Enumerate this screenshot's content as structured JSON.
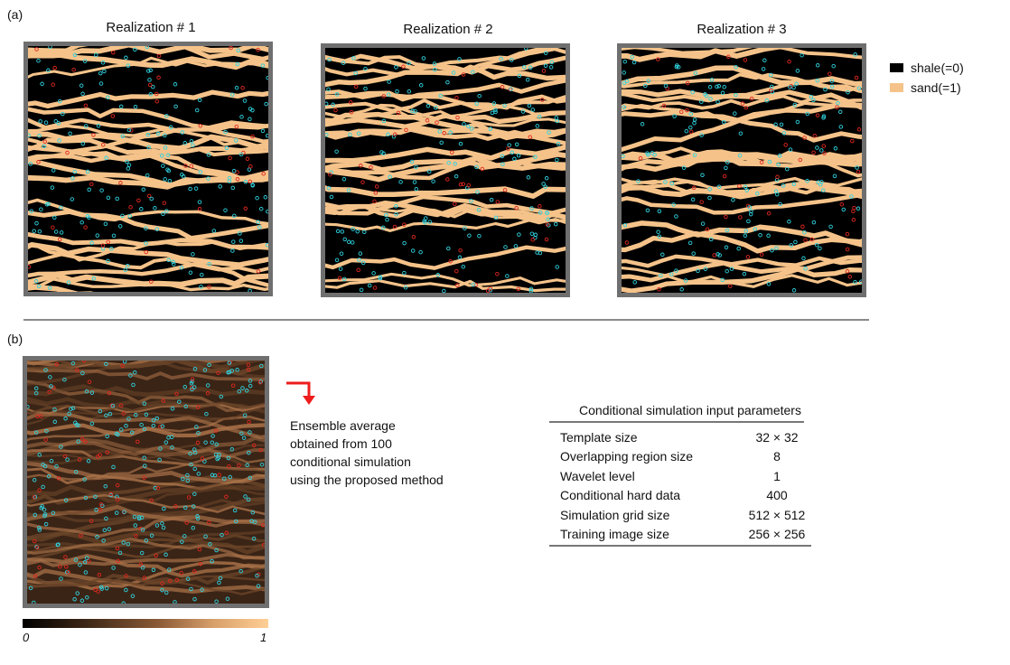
{
  "panel_a": {
    "label": "(a)",
    "realizations": [
      {
        "title": "Realization # 1"
      },
      {
        "title": "Realization # 2"
      },
      {
        "title": "Realization # 3"
      }
    ],
    "legend": [
      {
        "label": "shale(=0)",
        "color": "#000000"
      },
      {
        "label": "sand(=1)",
        "color": "#f5c38a"
      }
    ]
  },
  "panel_b": {
    "label": "(b)",
    "note_lines": [
      "Ensemble average",
      "obtained from 100",
      "conditional simulation",
      "using the proposed method"
    ],
    "colorbar": {
      "min_label": "0",
      "max_label": "1"
    },
    "table": {
      "title": "Conditional simulation input parameters",
      "rows": [
        {
          "name": "Template size",
          "value": "32 × 32"
        },
        {
          "name": "Overlapping region size",
          "value": "8"
        },
        {
          "name": "Wavelet level",
          "value": "1"
        },
        {
          "name": "Conditional hard data",
          "value": "400"
        },
        {
          "name": "Simulation grid size",
          "value": "512 × 512"
        },
        {
          "name": "Training image size",
          "value": "256 × 256"
        }
      ]
    }
  },
  "colors": {
    "sand": "#f5c38a",
    "shale": "#000000",
    "hard_data_cyan": "#2fd3e0",
    "hard_data_red": "#e0281e",
    "frame": "#6f6f6f",
    "arrow": "#ee1c1c"
  }
}
